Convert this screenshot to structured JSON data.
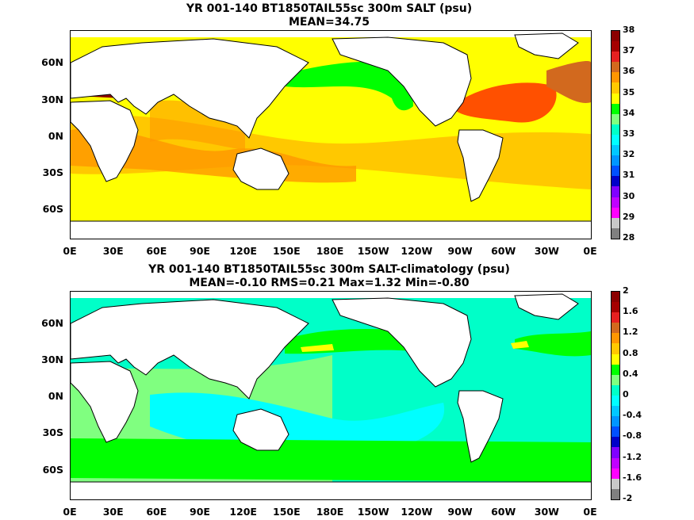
{
  "panels": [
    {
      "title_line1": "YR 001-140 BT1850TAIL55sc 300m SALT (psu)",
      "title_line2": "MEAN=34.75",
      "colorbar_labels": [
        "38",
        "37",
        "36",
        "35",
        "34",
        "33",
        "32",
        "31",
        "30",
        "29",
        "28"
      ],
      "colorbar_colors": [
        "#8b0000",
        "#a50000",
        "#e62020",
        "#d2691e",
        "#ff9600",
        "#ffc800",
        "#ffff00",
        "#00ff00",
        "#80ff80",
        "#00ffc8",
        "#00ffff",
        "#00c8ff",
        "#0096ff",
        "#0050ff",
        "#0000c8",
        "#8000ff",
        "#c000ff",
        "#ff00ff",
        "#c8c8c8",
        "#808080"
      ]
    },
    {
      "title_line1": "YR 001-140 BT1850TAIL55sc 300m SALT-climatology (psu)",
      "title_line2": "MEAN=-0.10   RMS=0.21   Max=1.32   Min=-0.80",
      "colorbar_labels": [
        "2",
        "1.6",
        "1.2",
        "0.8",
        "0.4",
        "0",
        "-0.4",
        "-0.8",
        "-1.2",
        "-1.6",
        "-2"
      ],
      "colorbar_colors": [
        "#8b0000",
        "#a50000",
        "#e62020",
        "#d2691e",
        "#ff9600",
        "#ffc800",
        "#ffff00",
        "#00ff00",
        "#80ff80",
        "#00ffc8",
        "#00ffff",
        "#00c8ff",
        "#0096ff",
        "#0050ff",
        "#0000c8",
        "#8000ff",
        "#c000ff",
        "#ff00ff",
        "#c8c8c8",
        "#808080"
      ]
    }
  ],
  "axes": {
    "lat_labels": [
      "60N",
      "30N",
      "0N",
      "30S",
      "60S"
    ],
    "lon_labels": [
      "0E",
      "30E",
      "60E",
      "90E",
      "120E",
      "150E",
      "180E",
      "150W",
      "120W",
      "90W",
      "60W",
      "30W",
      "0E"
    ]
  }
}
